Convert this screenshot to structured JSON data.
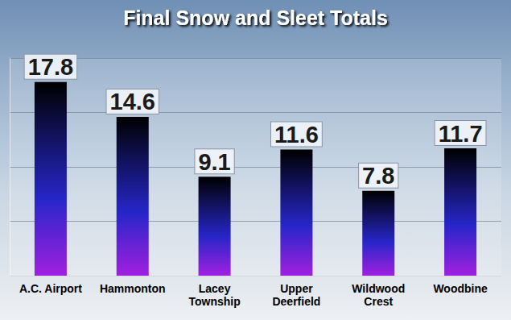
{
  "chart_data": {
    "type": "bar",
    "title": "Final Snow and Sleet Totals",
    "categories": [
      "A.C. Airport",
      "Hammonton",
      "Lacey\nTownship",
      "Upper\nDeerfield",
      "Wildwood\nCrest",
      "Woodbine"
    ],
    "values": [
      17.8,
      14.6,
      9.1,
      11.6,
      7.8,
      11.7
    ],
    "color": "#2626c8",
    "ylim": [
      0,
      20
    ],
    "yticks": [
      0,
      5,
      10,
      15,
      20
    ],
    "grid": true,
    "data_labels": true,
    "tick_labels": "x"
  }
}
